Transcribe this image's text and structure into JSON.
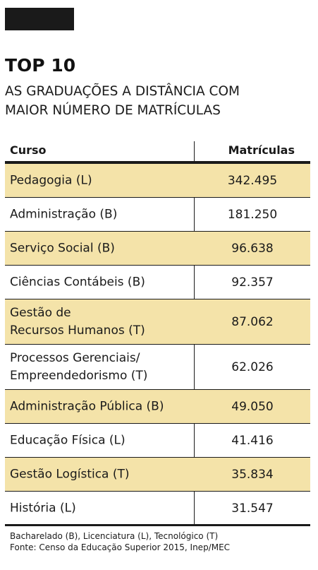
{
  "header": {
    "title": "TOP 10",
    "subtitle_line1": "AS GRADUAÇÕES A DISTÂNCIA COM",
    "subtitle_line2": "MAIOR NÚMERO DE MATRÍCULAS"
  },
  "table": {
    "col_curso": "Curso",
    "col_matriculas": "Matrículas"
  },
  "chart_data": {
    "type": "table",
    "title": "TOP 10",
    "subtitle": "AS GRADUAÇÕES A DISTÂNCIA COM MAIOR NÚMERO DE MATRÍCULAS",
    "columns": [
      "Curso",
      "Matrículas"
    ],
    "rows": [
      {
        "curso": [
          "Pedagogia (L)"
        ],
        "matriculas": "342.495",
        "value": 342495
      },
      {
        "curso": [
          "Administração (B)"
        ],
        "matriculas": "181.250",
        "value": 181250
      },
      {
        "curso": [
          "Serviço Social (B)"
        ],
        "matriculas": "96.638",
        "value": 96638
      },
      {
        "curso": [
          "Ciências Contábeis (B)"
        ],
        "matriculas": "92.357",
        "value": 92357
      },
      {
        "curso": [
          "Gestão de",
          "Recursos Humanos (T)"
        ],
        "matriculas": "87.062",
        "value": 87062
      },
      {
        "curso": [
          "Processos Gerenciais/",
          "Empreendedorismo (T)"
        ],
        "matriculas": "62.026",
        "value": 62026
      },
      {
        "curso": [
          "Administração Pública (B)"
        ],
        "matriculas": "49.050",
        "value": 49050
      },
      {
        "curso": [
          "Educação Física (L)"
        ],
        "matriculas": "41.416",
        "value": 41416
      },
      {
        "curso": [
          "Gestão Logística (T)"
        ],
        "matriculas": "35.834",
        "value": 35834
      },
      {
        "curso": [
          "História (L)"
        ],
        "matriculas": "31.547",
        "value": 31547
      }
    ],
    "highlight_color": "#f4e3a9",
    "rule_color": "#1a1a1a"
  },
  "footer": {
    "legend": "Bacharelado (B), Licenciatura (L), Tecnológico (T)",
    "source": "Fonte: Censo da Educação Superior 2015, Inep/MEC"
  }
}
